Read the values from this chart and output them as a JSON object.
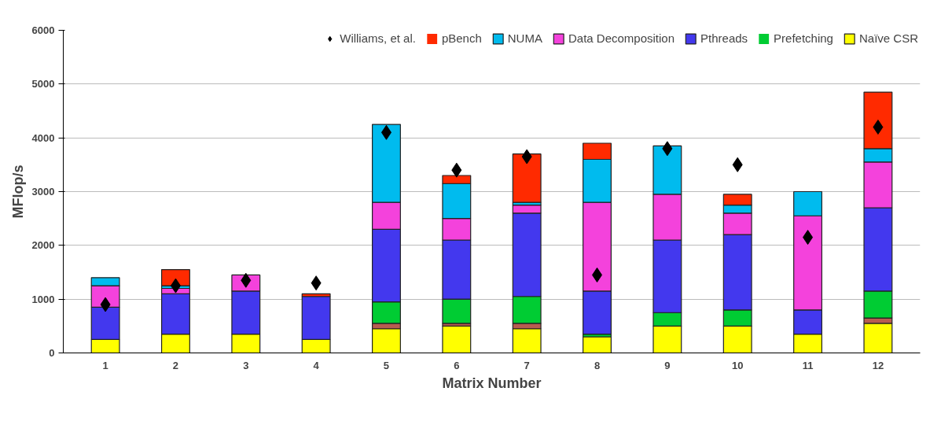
{
  "chart_data": {
    "type": "bar",
    "stacked": true,
    "xlabel": "Matrix Number",
    "ylabel": "MFlop/s",
    "categories": [
      "1",
      "2",
      "3",
      "4",
      "5",
      "6",
      "7",
      "8",
      "9",
      "10",
      "11",
      "12"
    ],
    "ylim": [
      0,
      6000
    ],
    "yticks": [
      0,
      1000,
      2000,
      3000,
      4000,
      5000,
      6000
    ],
    "grid": "y",
    "legend": "top",
    "series": [
      {
        "name": "Naïve CSR",
        "color": "#ffff00",
        "values": [
          250,
          350,
          350,
          250,
          450,
          500,
          450,
          300,
          500,
          500,
          350,
          550
        ]
      },
      {
        "color": "#b85c50",
        "values": [
          0,
          0,
          0,
          0,
          100,
          50,
          100,
          0,
          0,
          0,
          0,
          100
        ]
      },
      {
        "name": "Prefetching",
        "color": "#00cc33",
        "values": [
          0,
          0,
          0,
          0,
          400,
          450,
          500,
          50,
          250,
          300,
          0,
          500
        ]
      },
      {
        "name": "Pthreads",
        "color": "#4338ee",
        "values": [
          600,
          750,
          800,
          800,
          1350,
          1100,
          1550,
          800,
          1350,
          1400,
          450,
          1550
        ]
      },
      {
        "name": "Data Decomposition",
        "color": "#f442dc",
        "values": [
          400,
          100,
          300,
          0,
          500,
          400,
          150,
          1650,
          850,
          400,
          1750,
          850
        ]
      },
      {
        "name": "NUMA",
        "color": "#00bbee",
        "values": [
          150,
          50,
          0,
          0,
          1450,
          650,
          50,
          800,
          900,
          150,
          450,
          250
        ]
      },
      {
        "name": "pBench",
        "color": "#ff2a00",
        "values": [
          0,
          300,
          0,
          50,
          0,
          150,
          900,
          300,
          0,
          200,
          0,
          1050
        ]
      },
      {
        "name": "Williams, et al.",
        "type": "scatter",
        "marker": "diamond",
        "color": "#000000",
        "values": [
          900,
          1250,
          1350,
          1300,
          4100,
          3400,
          3650,
          1450,
          3800,
          3500,
          2150,
          4200
        ]
      }
    ]
  }
}
